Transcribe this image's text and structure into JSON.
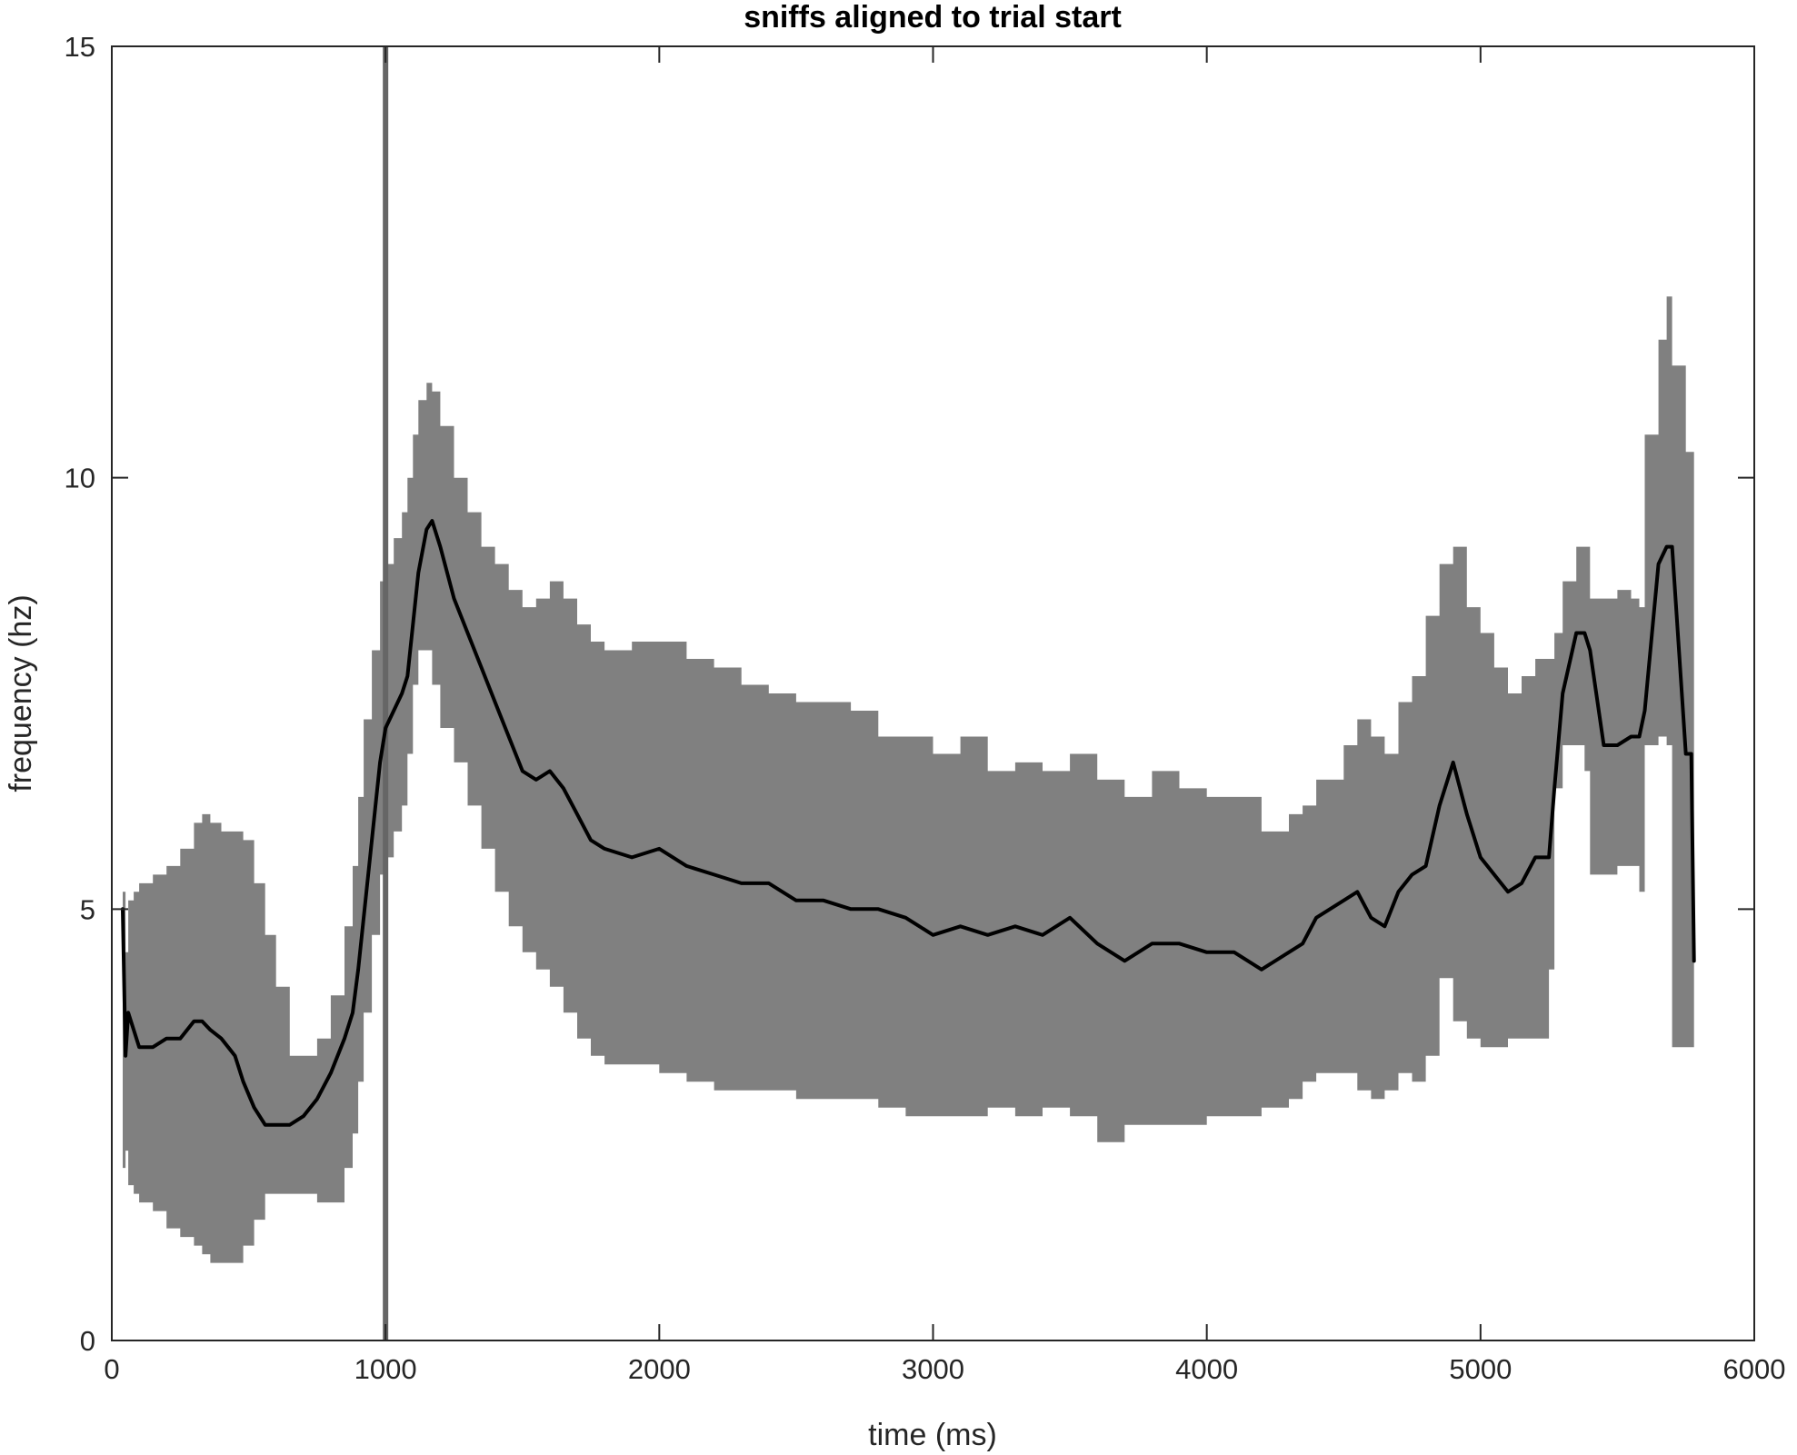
{
  "chart_data": {
    "type": "line",
    "title": "sniffs aligned to trial start",
    "xlabel": "time (ms)",
    "ylabel": "frequency (hz)",
    "xlim": [
      0,
      6000
    ],
    "ylim": [
      0,
      15
    ],
    "xticks": [
      0,
      1000,
      2000,
      3000,
      4000,
      5000,
      6000
    ],
    "yticks": [
      0,
      5,
      10,
      15
    ],
    "grid": false,
    "legend": "none",
    "colors": {
      "mean_line": "#000000",
      "error_band": "#808080",
      "marker_line": "#666666",
      "axes": "#262626"
    },
    "reference_line": {
      "x": 1000
    },
    "series": [
      {
        "x": [
          40,
          50,
          60,
          80,
          100,
          150,
          200,
          250,
          300,
          330,
          360,
          400,
          450,
          480,
          520,
          560,
          600,
          650,
          700,
          750,
          800,
          850,
          880,
          900,
          920,
          950,
          980,
          1000,
          1030,
          1060,
          1080,
          1100,
          1120,
          1150,
          1170,
          1200,
          1250,
          1300,
          1350,
          1400,
          1450,
          1500,
          1550,
          1600,
          1650,
          1700,
          1750,
          1800,
          1900,
          2000,
          2100,
          2200,
          2300,
          2400,
          2500,
          2600,
          2700,
          2800,
          2900,
          3000,
          3100,
          3200,
          3300,
          3400,
          3500,
          3600,
          3700,
          3800,
          3900,
          4000,
          4100,
          4200,
          4300,
          4350,
          4400,
          4500,
          4550,
          4600,
          4650,
          4700,
          4750,
          4800,
          4850,
          4900,
          4950,
          5000,
          5050,
          5100,
          5150,
          5200,
          5250,
          5270,
          5300,
          5350,
          5380,
          5400,
          5450,
          5500,
          5550,
          5580,
          5600,
          5650,
          5680,
          5700,
          5750,
          5770,
          5780
        ],
        "y": [
          5.0,
          3.3,
          3.8,
          3.6,
          3.4,
          3.4,
          3.5,
          3.5,
          3.7,
          3.7,
          3.6,
          3.5,
          3.3,
          3.0,
          2.7,
          2.5,
          2.5,
          2.5,
          2.6,
          2.8,
          3.1,
          3.5,
          3.8,
          4.3,
          4.9,
          5.8,
          6.7,
          7.1,
          7.3,
          7.5,
          7.7,
          8.3,
          8.9,
          9.4,
          9.5,
          9.2,
          8.6,
          8.2,
          7.8,
          7.4,
          7.0,
          6.6,
          6.5,
          6.6,
          6.4,
          6.1,
          5.8,
          5.7,
          5.6,
          5.7,
          5.5,
          5.4,
          5.3,
          5.3,
          5.1,
          5.1,
          5.0,
          5.0,
          4.9,
          4.7,
          4.8,
          4.7,
          4.8,
          4.7,
          4.9,
          4.6,
          4.4,
          4.6,
          4.6,
          4.5,
          4.5,
          4.3,
          4.5,
          4.6,
          4.9,
          5.1,
          5.2,
          4.9,
          4.8,
          5.2,
          5.4,
          5.5,
          6.2,
          6.7,
          6.1,
          5.6,
          5.4,
          5.2,
          5.3,
          5.6,
          5.6,
          6.4,
          7.5,
          8.2,
          8.2,
          8.0,
          6.9,
          6.9,
          7.0,
          7.0,
          7.3,
          9.0,
          9.2,
          9.2,
          6.8,
          6.8,
          4.4
        ],
        "upper": [
          5.2,
          4.5,
          5.1,
          5.2,
          5.3,
          5.4,
          5.5,
          5.7,
          6.0,
          6.1,
          6.0,
          5.9,
          5.9,
          5.8,
          5.3,
          4.7,
          4.1,
          3.3,
          3.3,
          3.5,
          4.0,
          4.8,
          5.5,
          6.3,
          7.2,
          8.0,
          8.8,
          9.0,
          9.3,
          9.6,
          10.0,
          10.5,
          10.9,
          11.1,
          11.0,
          10.6,
          10.0,
          9.6,
          9.2,
          9.0,
          8.7,
          8.5,
          8.6,
          8.8,
          8.6,
          8.3,
          8.1,
          8.0,
          8.1,
          8.1,
          7.9,
          7.8,
          7.6,
          7.5,
          7.4,
          7.4,
          7.3,
          7.0,
          7.0,
          6.8,
          7.0,
          6.6,
          6.7,
          6.6,
          6.8,
          6.5,
          6.3,
          6.6,
          6.4,
          6.3,
          6.3,
          5.9,
          6.1,
          6.2,
          6.5,
          6.9,
          7.2,
          7.0,
          6.8,
          7.4,
          7.7,
          8.4,
          9.0,
          9.2,
          8.5,
          8.2,
          7.8,
          7.5,
          7.7,
          7.9,
          7.9,
          8.2,
          8.8,
          9.2,
          9.2,
          8.6,
          8.6,
          8.7,
          8.6,
          8.5,
          10.5,
          11.6,
          12.1,
          11.3,
          10.3,
          10.3,
          10.3
        ],
        "lower": [
          4.8,
          2.0,
          2.2,
          1.8,
          1.7,
          1.6,
          1.5,
          1.3,
          1.2,
          1.1,
          1.0,
          0.9,
          0.9,
          0.9,
          1.1,
          1.4,
          1.7,
          1.7,
          1.7,
          1.7,
          1.6,
          1.6,
          2.0,
          2.4,
          3.0,
          3.8,
          4.7,
          5.4,
          5.6,
          5.9,
          6.2,
          6.8,
          7.6,
          8.0,
          8.0,
          7.6,
          7.1,
          6.7,
          6.2,
          5.7,
          5.2,
          4.8,
          4.5,
          4.3,
          4.1,
          3.8,
          3.5,
          3.3,
          3.2,
          3.2,
          3.1,
          3.0,
          2.9,
          2.9,
          2.9,
          2.8,
          2.8,
          2.8,
          2.7,
          2.6,
          2.6,
          2.6,
          2.7,
          2.6,
          2.7,
          2.6,
          2.3,
          2.5,
          2.5,
          2.5,
          2.6,
          2.6,
          2.7,
          2.8,
          3.0,
          3.1,
          3.1,
          2.9,
          2.8,
          2.9,
          3.1,
          3.0,
          3.3,
          4.2,
          3.7,
          3.5,
          3.4,
          3.4,
          3.5,
          3.5,
          3.5,
          4.3,
          6.4,
          6.9,
          6.9,
          6.6,
          5.4,
          5.4,
          5.5,
          5.5,
          5.2,
          6.9,
          7.0,
          6.9,
          3.4,
          3.4,
          3.4
        ]
      }
    ]
  }
}
